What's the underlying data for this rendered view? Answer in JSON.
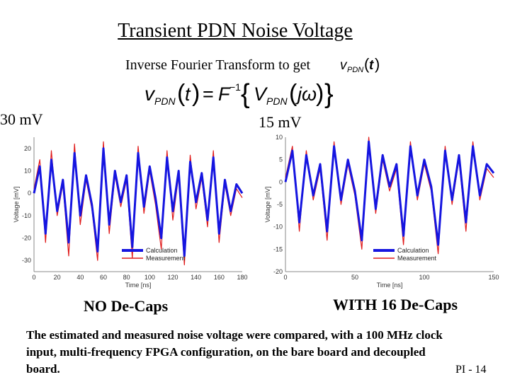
{
  "slide": {
    "title": "Transient PDN Noise Voltage",
    "subtitle": "Inverse Fourier Transform to get",
    "inline_math": "vPDN (t)",
    "equation": "vPDN (t) = F⁻¹ {VPDN (jω)}",
    "page_number": "PI - 14",
    "body_text": "The estimated and measured noise voltage were compared, with a 100 MHz clock input, multi-frequency FPGA configuration, on the bare board and decoupled board."
  },
  "colors": {
    "calculation": "#1515e0",
    "measurement": "#e01a1a"
  },
  "chart_data": [
    {
      "type": "line",
      "peak_label": "30 mV",
      "caption": "NO De-Caps",
      "xlabel": "Time [ns]",
      "ylabel": "Voltage [mV]",
      "xlim": [
        0,
        180
      ],
      "ylim": [
        -35,
        25
      ],
      "xticks": [
        "0",
        "20",
        "40",
        "60",
        "80",
        "100",
        "120",
        "140",
        "160",
        "180"
      ],
      "yticks": [
        "20",
        "10",
        "0",
        "-10",
        "-20",
        "-30"
      ],
      "ytick_values": [
        20,
        10,
        0,
        -10,
        -20,
        -30
      ],
      "legend": [
        "Calculation",
        "Measurement"
      ],
      "legend_position": "bottom-right",
      "series": [
        {
          "name": "Calculation",
          "x": [
            0,
            5,
            10,
            15,
            20,
            25,
            30,
            35,
            40,
            45,
            50,
            55,
            60,
            65,
            70,
            75,
            80,
            85,
            90,
            95,
            100,
            105,
            110,
            115,
            120,
            125,
            130,
            135,
            140,
            145,
            150,
            155,
            160,
            165,
            170,
            175,
            180
          ],
          "values": [
            0,
            12,
            -18,
            15,
            -8,
            6,
            -22,
            18,
            -10,
            8,
            -5,
            -26,
            20,
            -14,
            10,
            -4,
            8,
            -24,
            18,
            -6,
            12,
            -2,
            -20,
            16,
            -8,
            10,
            -28,
            14,
            -4,
            9,
            -12,
            16,
            -18,
            6,
            -8,
            4,
            0
          ]
        },
        {
          "name": "Measurement",
          "x": [
            0,
            5,
            10,
            15,
            20,
            25,
            30,
            35,
            40,
            45,
            50,
            55,
            60,
            65,
            70,
            75,
            80,
            85,
            90,
            95,
            100,
            105,
            110,
            115,
            120,
            125,
            130,
            135,
            140,
            145,
            150,
            155,
            160,
            165,
            170,
            175,
            180
          ],
          "values": [
            2,
            15,
            -22,
            19,
            -10,
            4,
            -28,
            22,
            -14,
            6,
            -7,
            -30,
            23,
            -18,
            8,
            -6,
            6,
            -29,
            21,
            -9,
            10,
            -5,
            -25,
            19,
            -12,
            8,
            -32,
            17,
            -7,
            7,
            -15,
            19,
            -22,
            4,
            -10,
            2,
            -2
          ]
        }
      ]
    },
    {
      "type": "line",
      "peak_label": "15 mV",
      "caption": "WITH 16 De-Caps",
      "xlabel": "Time [ns]",
      "ylabel": "Voltage [mV]",
      "xlim": [
        0,
        150
      ],
      "ylim": [
        -20,
        10
      ],
      "xticks": [
        "0",
        "50",
        "100",
        "150"
      ],
      "yticks": [
        "10",
        "5",
        "0",
        "-5",
        "-10",
        "-15",
        "-20"
      ],
      "ytick_values": [
        10,
        5,
        0,
        -5,
        -10,
        -15,
        -20
      ],
      "legend": [
        "Calculation",
        "Measurement"
      ],
      "legend_position": "bottom-right",
      "series": [
        {
          "name": "Calculation",
          "x": [
            0,
            5,
            10,
            15,
            20,
            25,
            30,
            35,
            40,
            45,
            50,
            55,
            60,
            65,
            70,
            75,
            80,
            85,
            90,
            95,
            100,
            105,
            110,
            115,
            120,
            125,
            130,
            135,
            140,
            145,
            150
          ],
          "values": [
            0,
            7,
            -9,
            6,
            -3,
            4,
            -11,
            8,
            -4,
            5,
            -2,
            -13,
            9,
            -6,
            6,
            -1,
            4,
            -12,
            8,
            -3,
            5,
            -1,
            -14,
            7,
            -4,
            6,
            -9,
            8,
            -3,
            4,
            2
          ]
        },
        {
          "name": "Measurement",
          "x": [
            0,
            5,
            10,
            15,
            20,
            25,
            30,
            35,
            40,
            45,
            50,
            55,
            60,
            65,
            70,
            75,
            80,
            85,
            90,
            95,
            100,
            105,
            110,
            115,
            120,
            125,
            130,
            135,
            140,
            145,
            150
          ],
          "values": [
            1,
            8,
            -11,
            7,
            -4,
            3,
            -13,
            9,
            -5,
            4,
            -3,
            -15,
            10,
            -7,
            5,
            -2,
            3,
            -14,
            9,
            -4,
            4,
            -2,
            -16,
            8,
            -5,
            5,
            -11,
            9,
            -4,
            3,
            1
          ]
        }
      ]
    }
  ]
}
